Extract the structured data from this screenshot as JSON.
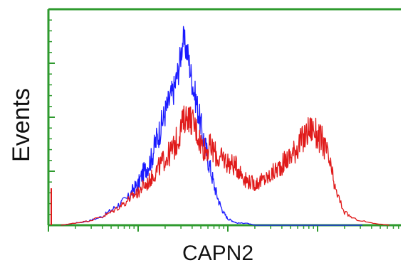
{
  "colors": {
    "axis": "#2e9a2e",
    "isotype_control": "#1a1aff",
    "stained_sample": "#e01a1a"
  },
  "chart_data": {
    "type": "histogram",
    "xlabel": "CAPN2",
    "ylabel": "Events",
    "x_scale": "log",
    "x_range_decades": [
      0,
      4
    ],
    "y_range_percent_of_frame": [
      0,
      100
    ],
    "grid": false,
    "legend": "none",
    "series": [
      {
        "color_key": "isotype_control",
        "x_decades": [
          0.14,
          0.3,
          0.45,
          0.6,
          0.7,
          0.8,
          0.9,
          0.95,
          1.0,
          1.05,
          1.1,
          1.15,
          1.2,
          1.25,
          1.3,
          1.35,
          1.4,
          1.45,
          1.5,
          1.55,
          1.6,
          1.65,
          1.7,
          1.75,
          1.8,
          1.85,
          1.9,
          1.95,
          2.0,
          2.05,
          2.1,
          2.2,
          2.3,
          2.4,
          2.6,
          3.0,
          3.5
        ],
        "y_percent": [
          0,
          1,
          2,
          4,
          7,
          10,
          13,
          17,
          19,
          24,
          27,
          31,
          39,
          45,
          52,
          58,
          63,
          72,
          86,
          80,
          67,
          57,
          46,
          36,
          27,
          18,
          11,
          6,
          3,
          2,
          1,
          1,
          0,
          0,
          0,
          0,
          0
        ]
      },
      {
        "color_key": "stained_sample",
        "x_decades": [
          0.14,
          0.3,
          0.45,
          0.6,
          0.7,
          0.8,
          0.9,
          0.95,
          1.0,
          1.05,
          1.1,
          1.15,
          1.2,
          1.25,
          1.3,
          1.35,
          1.4,
          1.45,
          1.5,
          1.55,
          1.6,
          1.65,
          1.7,
          1.75,
          1.8,
          1.85,
          1.9,
          1.95,
          2.0,
          2.05,
          2.1,
          2.15,
          2.2,
          2.25,
          2.3,
          2.35,
          2.4,
          2.45,
          2.5,
          2.55,
          2.6,
          2.65,
          2.7,
          2.75,
          2.8,
          2.85,
          2.9,
          2.95,
          3.0,
          3.05,
          3.1,
          3.15,
          3.2,
          3.3,
          3.4,
          3.6,
          3.8
        ],
        "y_percent": [
          0,
          1,
          2,
          4,
          6,
          9,
          12,
          14,
          15,
          18,
          19,
          22,
          25,
          28,
          31,
          33,
          36,
          41,
          48,
          51,
          48,
          44,
          38,
          35,
          36,
          34,
          30,
          31,
          29,
          28,
          27,
          24,
          21,
          20,
          19,
          20,
          21,
          22,
          24,
          26,
          28,
          30,
          32,
          35,
          38,
          40,
          44,
          45,
          41,
          39,
          34,
          26,
          16,
          6,
          3,
          1,
          0
        ]
      }
    ]
  }
}
